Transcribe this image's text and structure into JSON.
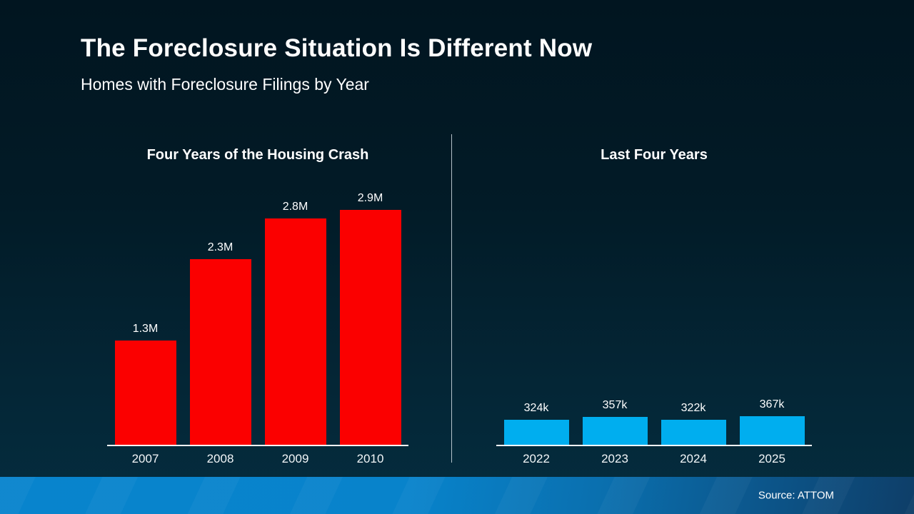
{
  "header": {
    "title": "The Foreclosure Situation Is Different Now",
    "subtitle": "Homes with Foreclosure Filings by Year"
  },
  "footer": {
    "source": "Source: ATTOM"
  },
  "colors": {
    "crash_bar": "#fb0000",
    "recent_bar": "#00aeef",
    "background_top": "#011520",
    "background_bottom": "#052d3f",
    "footer_left": "#0884cd",
    "footer_right": "#0e3e68",
    "axis": "#ffffff"
  },
  "chart_data": [
    {
      "type": "bar",
      "title": "Four Years of the Housing Crash",
      "categories": [
        "2007",
        "2008",
        "2009",
        "2010"
      ],
      "values": [
        1.3,
        2.3,
        2.8,
        2.9
      ],
      "value_labels": [
        "1.3M",
        "2.3M",
        "2.8M",
        "2.9M"
      ],
      "unit": "millions of homes with foreclosure filings",
      "bar_color": "#fb0000",
      "ylim": [
        0,
        3.2
      ],
      "grid": false,
      "legend": "none"
    },
    {
      "type": "bar",
      "title": "Last Four Years",
      "categories": [
        "2022",
        "2023",
        "2024",
        "2025"
      ],
      "values": [
        0.324,
        0.357,
        0.322,
        0.367
      ],
      "value_labels": [
        "324k",
        "357k",
        "322k",
        "367k"
      ],
      "unit": "millions of homes with foreclosure filings",
      "bar_color": "#00aeef",
      "ylim": [
        0,
        3.2
      ],
      "grid": false,
      "legend": "none"
    }
  ]
}
